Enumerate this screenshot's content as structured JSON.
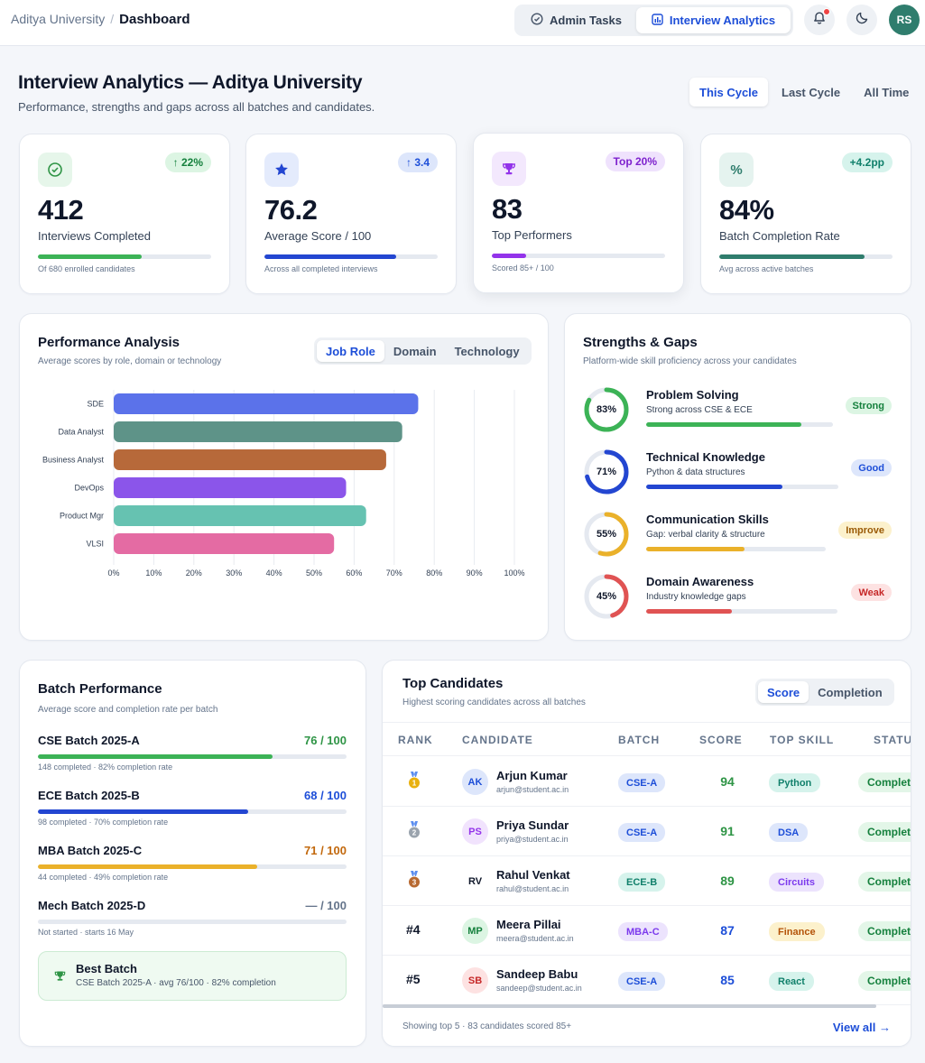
{
  "breadcrumb": {
    "root": "Aditya University",
    "separator": "/",
    "current": "Dashboard"
  },
  "nav_tabs": [
    {
      "label": "Admin Tasks",
      "icon": "check-circle-icon",
      "active": false
    },
    {
      "label": "Interview Analytics",
      "icon": "bar-chart-icon",
      "active": true
    }
  ],
  "header_actions": {
    "notification_icon": "bell-icon",
    "notification_dot_color": "#ef4444",
    "theme_icon": "moon-icon",
    "avatar_initials": "RS"
  },
  "page": {
    "title": "Interview Analytics — Aditya University",
    "subtitle": "Performance, strengths and gaps across all batches and candidates."
  },
  "range_tabs": [
    {
      "label": "This Cycle",
      "active": true
    },
    {
      "label": "Last Cycle",
      "active": false
    },
    {
      "label": "All Time",
      "active": false
    }
  ],
  "stats": [
    {
      "icon": "check-circle-icon",
      "delta": "↑ 22%",
      "value": "412",
      "label": "Interviews Completed",
      "progress": 0.6,
      "note": "Of 680 enrolled candidates",
      "color": "#3cb356"
    },
    {
      "icon": "star-icon",
      "delta": "↑ 3.4",
      "value": "76.2",
      "label": "Average Score / 100",
      "progress": 0.76,
      "note": "Across all completed interviews",
      "color": "#2346d1"
    },
    {
      "icon": "trophy-icon",
      "delta": "Top 20%",
      "value": "83",
      "label": "Top Performers",
      "progress": 0.2,
      "note": "Scored 85+ / 100",
      "color": "#9333ea"
    },
    {
      "icon": "percent-icon",
      "delta": "+4.2pp",
      "value": "84%",
      "label": "Batch Completion Rate",
      "progress": 0.84,
      "note": "Avg across active batches",
      "color": "#2f7d6d"
    }
  ],
  "performance": {
    "title": "Performance Analysis",
    "subtitle": "Average scores by role, domain or technology",
    "tabs": [
      {
        "label": "Job Role",
        "active": true
      },
      {
        "label": "Domain",
        "active": false
      },
      {
        "label": "Technology",
        "active": false
      }
    ]
  },
  "chart_data": {
    "type": "bar",
    "orientation": "horizontal",
    "categories": [
      "SDE",
      "Data Analyst",
      "Business Analyst",
      "DevOps",
      "Product Mgr",
      "VLSI"
    ],
    "values": [
      76,
      72,
      68,
      58,
      63,
      55
    ],
    "colors": [
      "#5b72ea",
      "#5e9388",
      "#b7693a",
      "#8b55ea",
      "#66c2b1",
      "#e46ba3"
    ],
    "x_ticks": [
      "0%",
      "10%",
      "20%",
      "30%",
      "40%",
      "50%",
      "60%",
      "70%",
      "80%",
      "90%",
      "100%"
    ],
    "xlim": [
      0,
      100
    ],
    "grid": "vertical"
  },
  "strengths": {
    "title": "Strengths & Gaps",
    "subtitle": "Platform-wide skill proficiency across your candidates",
    "items": [
      {
        "pct": "83%",
        "value": 83,
        "name": "Problem Solving",
        "desc": "Strong across CSE & ECE",
        "badge": "Strong",
        "color": "#3cb356",
        "badge_bg": "#dcf5e3",
        "badge_fg": "#15803d"
      },
      {
        "pct": "71%",
        "value": 71,
        "name": "Technical Knowledge",
        "desc": "Python & data structures",
        "badge": "Good",
        "color": "#2346d1",
        "badge_bg": "#dde6fb",
        "badge_fg": "#1d4ed8"
      },
      {
        "pct": "55%",
        "value": 55,
        "name": "Communication Skills",
        "desc": "Gap: verbal clarity & structure",
        "badge": "Improve",
        "color": "#eab12a",
        "badge_bg": "#fcf1cc",
        "badge_fg": "#9a5a06"
      },
      {
        "pct": "45%",
        "value": 45,
        "name": "Domain Awareness",
        "desc": "Industry knowledge gaps",
        "badge": "Weak",
        "color": "#e05353",
        "badge_bg": "#fde2e2",
        "badge_fg": "#c62828"
      }
    ]
  },
  "batch": {
    "title": "Batch Performance",
    "subtitle": "Average score and completion rate per batch",
    "rows": [
      {
        "name": "CSE Batch 2025-A",
        "score": "76 / 100",
        "meta": "148 completed · 82% completion rate",
        "progress": 0.76,
        "color": "#3cb356",
        "score_color": "#2e9445"
      },
      {
        "name": "ECE Batch 2025-B",
        "score": "68 / 100",
        "meta": "98 completed · 70% completion rate",
        "progress": 0.68,
        "color": "#2346d1",
        "score_color": "#1d4ed8"
      },
      {
        "name": "MBA Batch 2025-C",
        "score": "71 / 100",
        "meta": "44 completed · 49% completion rate",
        "progress": 0.71,
        "color": "#eab12a",
        "score_color": "#c2680c"
      },
      {
        "name": "Mech Batch 2025-D",
        "score": "— / 100",
        "meta": "Not started · starts 16 May",
        "progress": 0,
        "color": "#cbd2dc",
        "score_color": "#64748b"
      }
    ],
    "best": {
      "title": "Best Batch",
      "detail": "CSE Batch 2025-A · avg 76/100 · 82% completion",
      "icon": "trophy-icon"
    }
  },
  "candidates": {
    "title": "Top Candidates",
    "subtitle": "Highest scoring candidates across all batches",
    "tabs": [
      {
        "label": "Score",
        "active": true
      },
      {
        "label": "Completion",
        "active": false
      }
    ],
    "columns": [
      "RANK",
      "CANDIDATE",
      "BATCH",
      "SCORE",
      "TOP SKILL",
      "STATUS"
    ],
    "rows": [
      {
        "rank": "1",
        "rank_type": "gold-medal-icon",
        "initials": "AK",
        "av_bg": "#dde6fb",
        "av_fg": "#1d4ed8",
        "name": "Arjun Kumar",
        "email": "arjun@student.ac.in",
        "batch": "CSE-A",
        "batch_bg": "#dde6fb",
        "batch_fg": "#1d4ed8",
        "score": "94",
        "score_color": "#2e9445",
        "skill": "Python",
        "skill_bg": "#d6f3ec",
        "skill_fg": "#11806b",
        "status": "Completed"
      },
      {
        "rank": "2",
        "rank_type": "silver-medal-icon",
        "initials": "PS",
        "av_bg": "#f1e3fd",
        "av_fg": "#9333ea",
        "name": "Priya Sundar",
        "email": "priya@student.ac.in",
        "batch": "CSE-A",
        "batch_bg": "#dde6fb",
        "batch_fg": "#1d4ed8",
        "score": "91",
        "score_color": "#2e9445",
        "skill": "DSA",
        "skill_bg": "#dde6fb",
        "skill_fg": "#1d4ed8",
        "status": "Completed"
      },
      {
        "rank": "3",
        "rank_type": "bronze-medal-icon",
        "initials": "RV",
        "av_bg": "#ffffff",
        "av_fg": "#0f172a",
        "name": "Rahul Venkat",
        "email": "rahul@student.ac.in",
        "batch": "ECE-B",
        "batch_bg": "#d6f3ec",
        "batch_fg": "#11806b",
        "score": "89",
        "score_color": "#2e9445",
        "skill": "Circuits",
        "skill_bg": "#ece3fd",
        "skill_fg": "#7c3aed",
        "status": "Completed"
      },
      {
        "rank": "#4",
        "rank_type": "text",
        "initials": "MP",
        "av_bg": "#dcf5e3",
        "av_fg": "#15803d",
        "name": "Meera Pillai",
        "email": "meera@student.ac.in",
        "batch": "MBA-C",
        "batch_bg": "#ece3fd",
        "batch_fg": "#7c3aed",
        "score": "87",
        "score_color": "#1d4ed8",
        "skill": "Finance",
        "skill_bg": "#fcf1cc",
        "skill_fg": "#b45309",
        "status": "Completed"
      },
      {
        "rank": "#5",
        "rank_type": "text",
        "initials": "SB",
        "av_bg": "#fde2e2",
        "av_fg": "#c62828",
        "name": "Sandeep Babu",
        "email": "sandeep@student.ac.in",
        "batch": "CSE-A",
        "batch_bg": "#dde6fb",
        "batch_fg": "#1d4ed8",
        "score": "85",
        "score_color": "#1d4ed8",
        "skill": "React",
        "skill_bg": "#d6f3ec",
        "skill_fg": "#11806b",
        "status": "Completed"
      }
    ],
    "footer_note": "Showing top 5 · 83 candidates scored 85+",
    "view_all": "View all →"
  }
}
